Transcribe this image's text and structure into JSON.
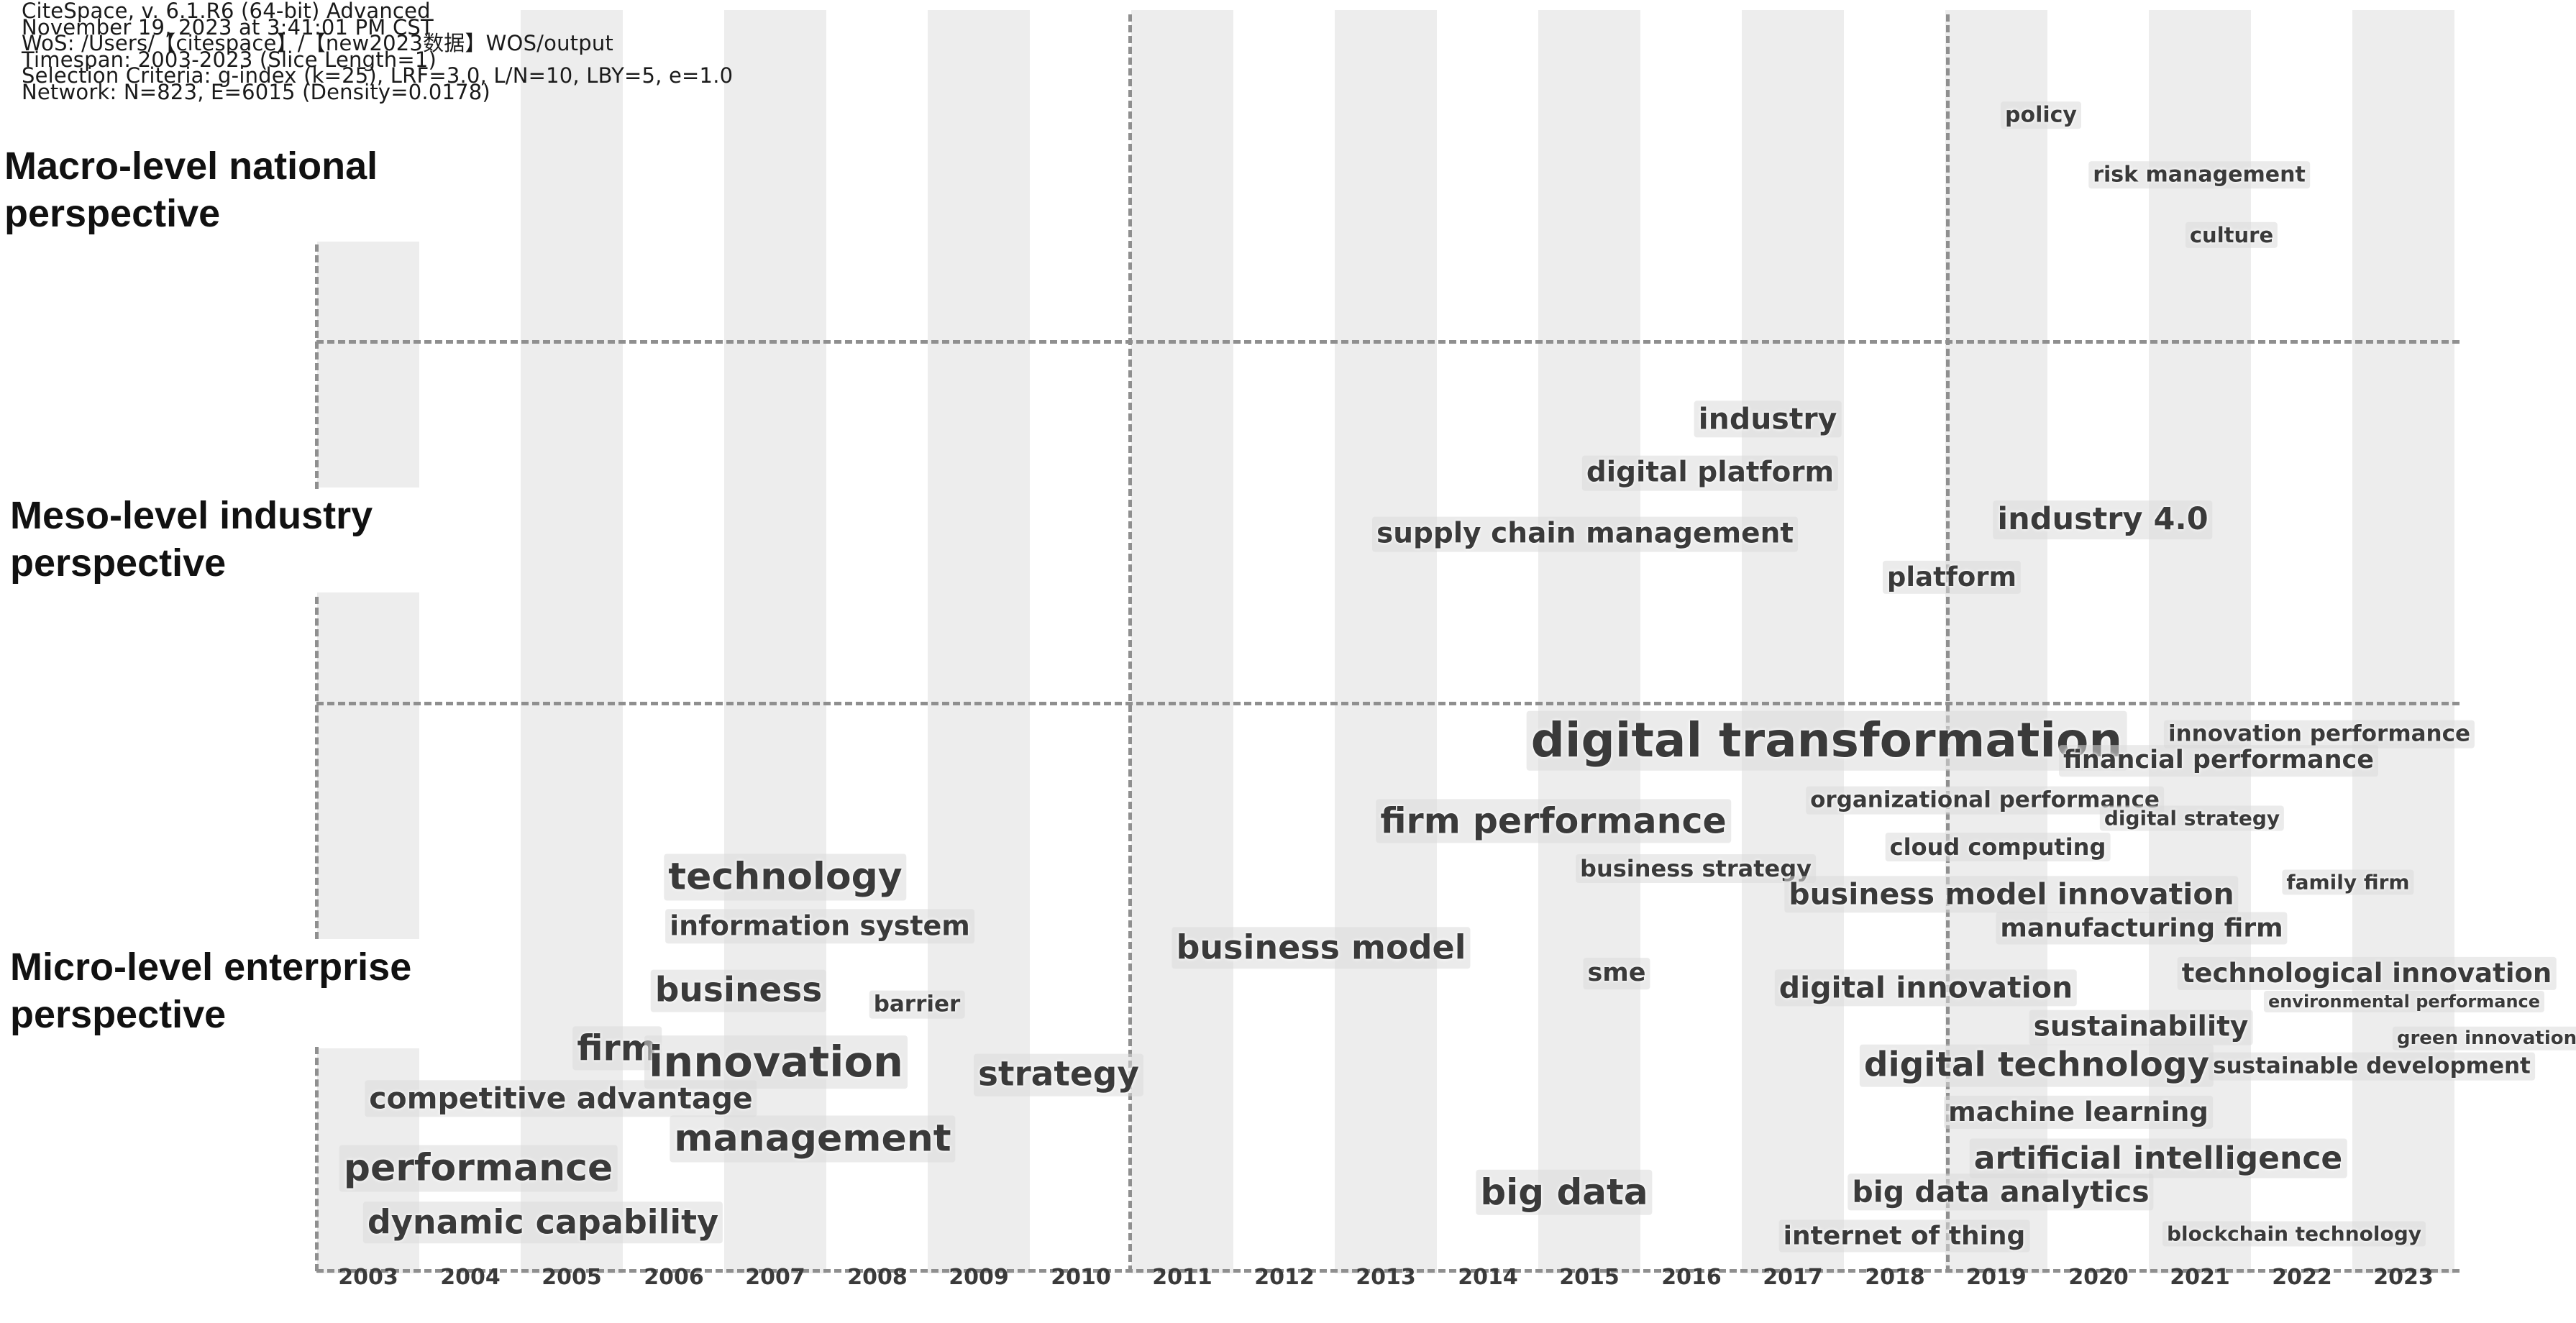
{
  "header": {
    "lines": [
      "CiteSpace, v. 6.1.R6 (64-bit) Advanced",
      "November 19, 2023 at 3:41:01 PM CST",
      "WoS: /Users/【citespace】/【new2023数据】WOS/output",
      "Timespan: 2003-2023 (Slice Length=1)",
      "Selection Criteria: g-index (k=25), LRF=3.0, L/N=10, LBY=5, e=1.0",
      "Network: N=823, E=6015 (Density=0.0178)"
    ]
  },
  "levels": [
    {
      "line1": "Macro-level national",
      "line2": "perspective"
    },
    {
      "line1": "Meso-level industry",
      "line2": "perspective"
    },
    {
      "line1": "Micro-level enterprise",
      "line2": "perspective"
    }
  ],
  "years": [
    "2003",
    "2004",
    "2005",
    "2006",
    "2007",
    "2008",
    "2009",
    "2010",
    "2011",
    "2012",
    "2013",
    "2014",
    "2015",
    "2016",
    "2017",
    "2018",
    "2019",
    "2020",
    "2021",
    "2022",
    "2023"
  ],
  "keywords": [
    "policy",
    "risk management",
    "culture",
    "industry",
    "digital platform",
    "supply chain management",
    "industry 4.0",
    "platform",
    "digital transformation",
    "innovation performance",
    "financial performance",
    "organizational performance",
    "digital strategy",
    "firm performance",
    "cloud computing",
    "business strategy",
    "family firm",
    "business model innovation",
    "technology",
    "manufacturing firm",
    "information system",
    "business model",
    "technological innovation",
    "sme",
    "digital innovation",
    "business",
    "environmental performance",
    "barrier",
    "sustainability",
    "green innovation",
    "firm",
    "innovation",
    "digital technology",
    "strategy",
    "sustainable development",
    "competitive advantage",
    "machine learning",
    "management",
    "artificial intelligence",
    "performance",
    "big data",
    "big data analytics",
    "dynamic capability",
    "internet of thing",
    "blockchain technology"
  ]
}
